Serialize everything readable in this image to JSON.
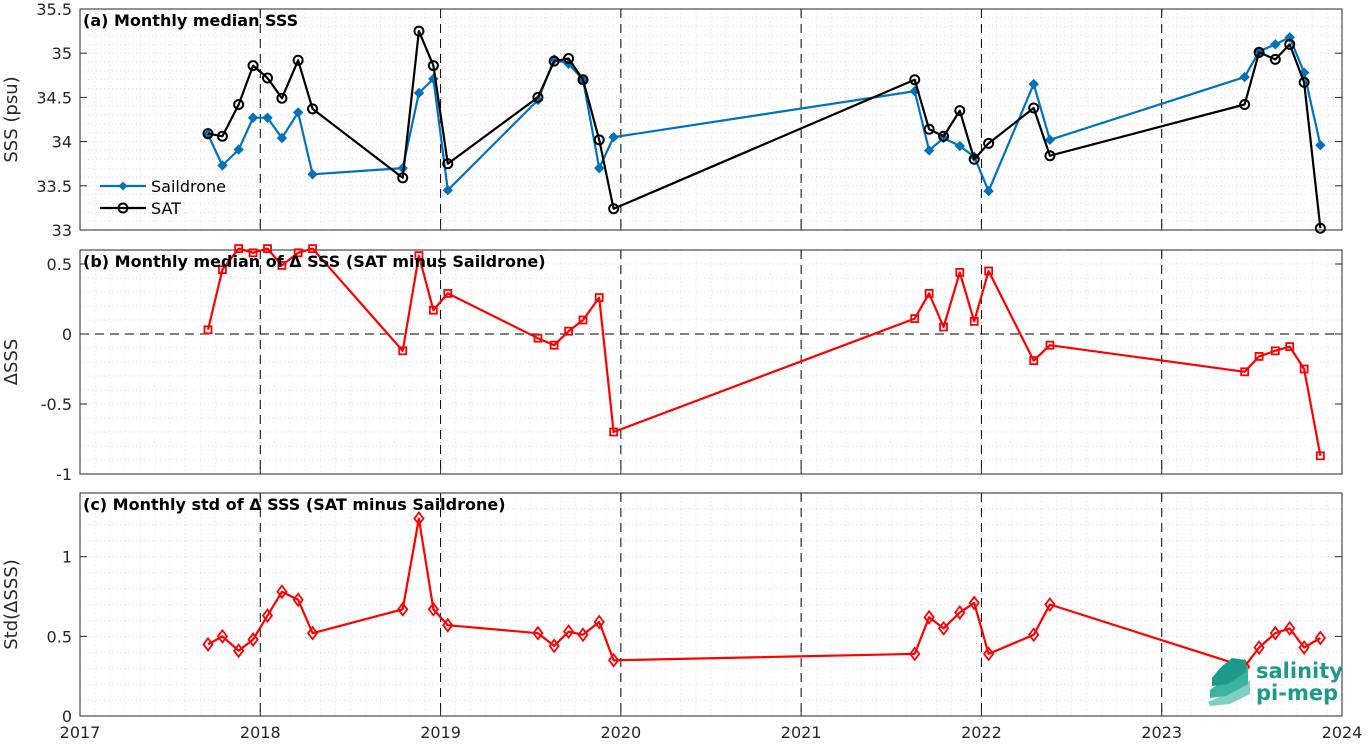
{
  "chart_data": [
    {
      "type": "line",
      "title": "(a) Monthly median SSS",
      "ylabel": "SSS (psu)",
      "ylim": [
        33,
        35.5
      ],
      "xlim": [
        2017,
        2024
      ],
      "yticks": [
        "33",
        "33.5",
        "34",
        "34.5",
        "35",
        "35.5"
      ],
      "grid": "minor-dotted",
      "legend_position": "middle-left",
      "series": [
        {
          "name": "Saildrone",
          "color": "#0072bd",
          "marker": "filled-diamond",
          "x": [
            2017.71,
            2017.79,
            2017.88,
            2017.96,
            2018.04,
            2018.12,
            2018.21,
            2018.29,
            2018.79,
            2018.88,
            2018.96,
            2019.04,
            2019.54,
            2019.63,
            2019.71,
            2019.79,
            2019.88,
            2019.96,
            2021.63,
            2021.71,
            2021.79,
            2021.88,
            2021.96,
            2022.04,
            2022.29,
            2022.38,
            2023.46,
            2023.54,
            2023.63,
            2023.71,
            2023.79,
            2023.88
          ],
          "y": [
            34.08,
            33.73,
            33.91,
            34.27,
            34.27,
            34.04,
            34.33,
            33.63,
            33.7,
            34.55,
            34.71,
            33.45,
            34.47,
            34.93,
            34.88,
            34.7,
            33.7,
            34.05,
            34.57,
            33.9,
            34.04,
            33.95,
            33.83,
            33.44,
            34.65,
            34.02,
            34.73,
            35.02,
            35.1,
            35.18,
            34.78,
            33.96
          ]
        },
        {
          "name": "SAT",
          "color": "#000000",
          "marker": "open-circle",
          "x": [
            2017.71,
            2017.79,
            2017.88,
            2017.96,
            2018.04,
            2018.12,
            2018.21,
            2018.29,
            2018.79,
            2018.88,
            2018.96,
            2019.04,
            2019.54,
            2019.63,
            2019.71,
            2019.79,
            2019.88,
            2019.96,
            2021.63,
            2021.71,
            2021.79,
            2021.88,
            2021.96,
            2022.04,
            2022.29,
            2022.38,
            2023.46,
            2023.54,
            2023.63,
            2023.71,
            2023.79,
            2023.88
          ],
          "y": [
            34.09,
            34.06,
            34.42,
            34.86,
            34.72,
            34.49,
            34.92,
            34.37,
            33.59,
            35.25,
            34.86,
            33.75,
            34.5,
            34.91,
            34.94,
            34.7,
            34.02,
            33.24,
            34.7,
            34.14,
            34.06,
            34.35,
            33.8,
            33.98,
            34.38,
            33.84,
            34.42,
            35.01,
            34.93,
            35.1,
            34.67,
            33.02
          ]
        }
      ]
    },
    {
      "type": "line",
      "title": "(b) Monthly median of Δ SSS (SAT minus Saildrone)",
      "ylabel": "ΔSSS",
      "ylim": [
        -1,
        0.6
      ],
      "xlim": [
        2017,
        2024
      ],
      "yticks": [
        "-1",
        "-0.5",
        "0",
        "0.5"
      ],
      "grid": "minor-dotted",
      "reference_line": 0,
      "series": [
        {
          "name": "",
          "color": "#ff0000",
          "marker": "open-square",
          "x": [
            2017.71,
            2017.79,
            2017.88,
            2017.96,
            2018.04,
            2018.12,
            2018.21,
            2018.29,
            2018.79,
            2018.88,
            2018.96,
            2019.04,
            2019.54,
            2019.63,
            2019.71,
            2019.79,
            2019.88,
            2019.96,
            2021.63,
            2021.71,
            2021.79,
            2021.88,
            2021.96,
            2022.04,
            2022.29,
            2022.38,
            2023.46,
            2023.54,
            2023.63,
            2023.71,
            2023.79,
            2023.88
          ],
          "y": [
            0.03,
            0.46,
            0.61,
            0.58,
            0.61,
            0.49,
            0.58,
            0.61,
            -0.12,
            0.56,
            0.17,
            0.29,
            -0.03,
            -0.08,
            0.02,
            0.1,
            0.26,
            -0.7,
            0.11,
            0.29,
            0.05,
            0.44,
            0.09,
            0.45,
            -0.19,
            -0.08,
            -0.27,
            -0.16,
            -0.12,
            -0.09,
            -0.25,
            -0.87
          ]
        }
      ]
    },
    {
      "type": "line",
      "title": "(c) Monthly std of Δ SSS (SAT minus Saildrone)",
      "ylabel": "Std(ΔSSS)",
      "ylim": [
        0,
        1.4
      ],
      "xlim": [
        2017,
        2024
      ],
      "yticks": [
        "0",
        "0.5",
        "1"
      ],
      "xticks": [
        "2017",
        "2018",
        "2019",
        "2020",
        "2021",
        "2022",
        "2023",
        "2024"
      ],
      "grid": "minor-dotted",
      "series": [
        {
          "name": "",
          "color": "#ff0000",
          "marker": "open-diamond",
          "x": [
            2017.71,
            2017.79,
            2017.88,
            2017.96,
            2018.04,
            2018.12,
            2018.21,
            2018.29,
            2018.79,
            2018.88,
            2018.96,
            2019.04,
            2019.54,
            2019.63,
            2019.71,
            2019.79,
            2019.88,
            2019.96,
            2021.63,
            2021.71,
            2021.79,
            2021.88,
            2021.96,
            2022.04,
            2022.29,
            2022.38,
            2023.46,
            2023.54,
            2023.63,
            2023.71,
            2023.79,
            2023.88
          ],
          "y": [
            0.45,
            0.5,
            0.41,
            0.48,
            0.63,
            0.78,
            0.73,
            0.52,
            0.67,
            1.24,
            0.67,
            0.57,
            0.52,
            0.44,
            0.53,
            0.51,
            0.59,
            0.35,
            0.39,
            0.62,
            0.55,
            0.65,
            0.71,
            0.39,
            0.51,
            0.7,
            0.31,
            0.43,
            0.52,
            0.55,
            0.43,
            0.49
          ]
        }
      ]
    }
  ],
  "logo": {
    "line1": "salinity",
    "line2": "pi-mep",
    "color": "#1d9a8c"
  }
}
